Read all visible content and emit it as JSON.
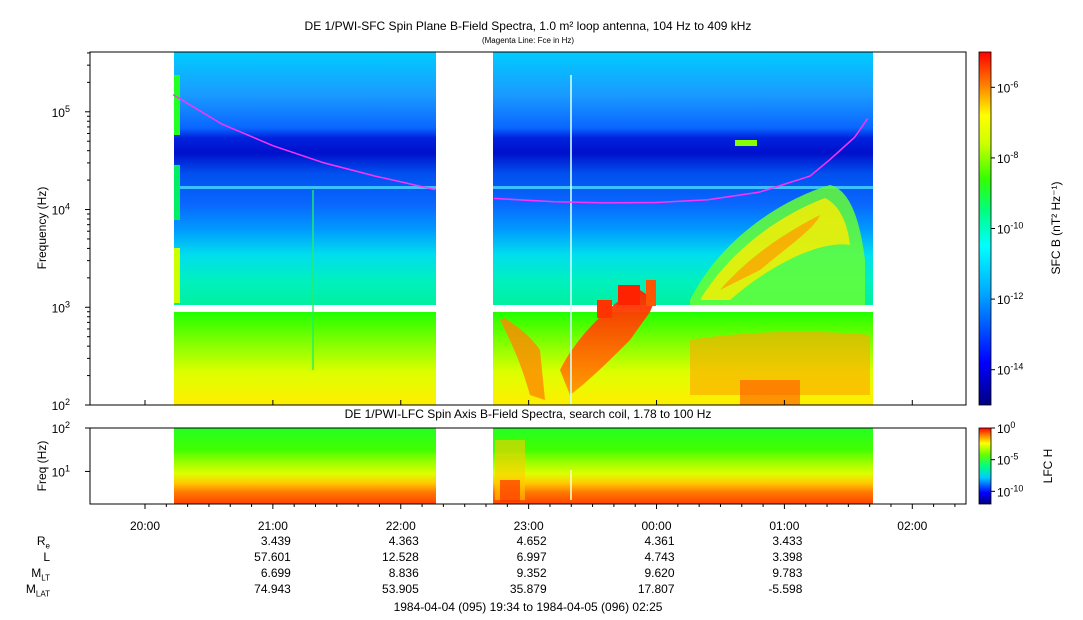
{
  "top_title": "DE 1/PWI-SFC  Spin Plane B-Field Spectra, 1.0 m² loop antenna, 104 Hz to 409 kHz",
  "top_subtitle": "(Magenta Line: Fce in Hz)",
  "bottom_title": "DE 1/PWI-LFC  Spin Axis B-Field Spectra, search coil, 1.78 to 100 Hz",
  "footer_range": "1984-04-04 (095) 19:34 to 1984-04-05 (096) 02:25",
  "colors": {
    "magenta_line": "#ff33ff",
    "frame": "#000000"
  },
  "chart_data": [
    {
      "type": "heatmap",
      "name": "SFC spectrogram",
      "title": "DE 1/PWI-SFC  Spin Plane B-Field Spectra, 1.0 m² loop antenna, 104 Hz to 409 kHz",
      "ylabel": "Frequency (Hz)",
      "yscale": "log",
      "ylim": [
        100,
        409000
      ],
      "y_ticks": [
        {
          "base": "10",
          "exp": "2",
          "value": 100
        },
        {
          "base": "10",
          "exp": "3",
          "value": 1000
        },
        {
          "base": "10",
          "exp": "4",
          "value": 10000
        },
        {
          "base": "10",
          "exp": "5",
          "value": 100000
        }
      ],
      "colorbar_label": "SFC B (nT² Hz⁻¹)",
      "colorbar_range": [
        1e-15,
        1e-05
      ],
      "colorbar_ticks": [
        {
          "base": "10",
          "exp": "-6",
          "value": 1e-06
        },
        {
          "base": "10",
          "exp": "-8",
          "value": 1e-08
        },
        {
          "base": "10",
          "exp": "-10",
          "value": 1e-10
        },
        {
          "base": "10",
          "exp": "-12",
          "value": 1e-12
        },
        {
          "base": "10",
          "exp": "-14",
          "value": 1e-14
        }
      ],
      "data_gaps_hours": [
        [
          19.57,
          20.22
        ],
        [
          22.27,
          22.73
        ],
        [
          1.68,
          2.42
        ]
      ],
      "fce_line": {
        "name": "Fce in Hz",
        "segments": [
          {
            "t": [
              20.22,
              20.6,
              21.0,
              21.4,
              21.8,
              22.27
            ],
            "f": [
              150000,
              75000,
              45000,
              30000,
              22000,
              16000
            ]
          },
          {
            "t": [
              22.73,
              23.2,
              23.6,
              0.0,
              0.4,
              0.8,
              1.2,
              1.35,
              1.55,
              1.65
            ],
            "f": [
              13000,
              12000,
              11700,
              11800,
              12600,
              15000,
              22000,
              32000,
              55000,
              85000
            ]
          }
        ]
      }
    },
    {
      "type": "heatmap",
      "name": "LFC spectrogram",
      "title": "DE 1/PWI-LFC  Spin Axis B-Field Spectra, search coil, 1.78 to 100 Hz",
      "ylabel": "Freq (Hz)",
      "yscale": "log",
      "ylim": [
        1.78,
        100
      ],
      "y_ticks": [
        {
          "base": "10",
          "exp": "1",
          "value": 10
        },
        {
          "base": "10",
          "exp": "2",
          "value": 100
        }
      ],
      "colorbar_label": "LFC H",
      "colorbar_range": [
        1e-12,
        1
      ],
      "colorbar_ticks": [
        {
          "base": "10",
          "exp": "0",
          "value": 1
        },
        {
          "base": "10",
          "exp": "-5",
          "value": 1e-05
        },
        {
          "base": "10",
          "exp": "-10",
          "value": 1e-10
        }
      ]
    }
  ],
  "x_axis": {
    "range_hours": [
      19.57,
      26.42
    ],
    "ticks": [
      {
        "label": "20:00",
        "hour": 20
      },
      {
        "label": "21:00",
        "hour": 21
      },
      {
        "label": "22:00",
        "hour": 22
      },
      {
        "label": "23:00",
        "hour": 23
      },
      {
        "label": "00:00",
        "hour": 24
      },
      {
        "label": "01:00",
        "hour": 25
      },
      {
        "label": "02:00",
        "hour": 26
      }
    ]
  },
  "ephemeris": {
    "rows": [
      {
        "name": "R",
        "sub": "e",
        "values": [
          "3.439",
          "4.363",
          "4.652",
          "4.361",
          "3.433"
        ]
      },
      {
        "name": "L",
        "sub": "",
        "values": [
          "57.601",
          "12.528",
          "6.997",
          "4.743",
          "3.398"
        ]
      },
      {
        "name": "M",
        "sub": "LT",
        "values": [
          "6.699",
          "8.836",
          "9.352",
          "9.620",
          "9.783"
        ]
      },
      {
        "name": "M",
        "sub": "LAT",
        "values": [
          "74.943",
          "53.905",
          "35.879",
          "17.807",
          "-5.598"
        ]
      }
    ]
  }
}
